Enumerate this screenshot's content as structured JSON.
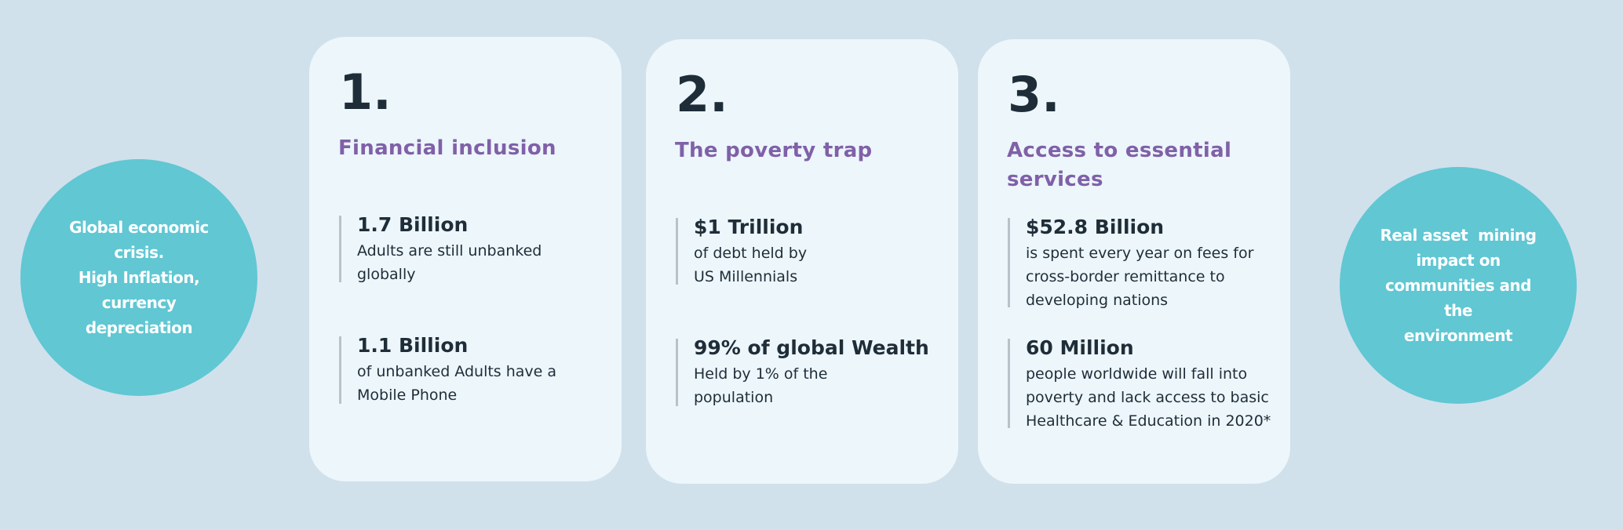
{
  "left_circle": {
    "text": "Global economic crisis.\nHigh Inflation, currency depreciation",
    "lines": [
      "Global economic",
      "crisis.",
      "High Inflation,",
      "currency",
      "depreciation"
    ]
  },
  "right_circle": {
    "lines": [
      "Real asset  mining",
      "impact on",
      "communities and the",
      "environment"
    ]
  },
  "cards": [
    {
      "number": "1.",
      "title": "Financial inclusion",
      "stats": [
        {
          "heading": "1.7 Billion",
          "body": "Adults are still unbanked globally"
        },
        {
          "heading": "1.1 Billion",
          "body": "of unbanked Adults have a Mobile Phone"
        }
      ]
    },
    {
      "number": "2.",
      "title": "The poverty trap",
      "stats": [
        {
          "heading": "$1 Trillion",
          "body": "of debt held by US Millennials"
        },
        {
          "heading": "99% of global Wealth",
          "body": "Held by 1% of the population"
        }
      ]
    },
    {
      "number": "3.",
      "title": "Access to essential services",
      "stats": [
        {
          "heading": "$52.8 Billion",
          "body": "is spent every year on fees for cross-border remittance to developing nations"
        },
        {
          "heading": "60 Million",
          "body": "people worldwide will fall into poverty and lack access to basic Healthcare & Education in 2020*"
        }
      ]
    }
  ],
  "colors": {
    "background": "#d0e1ec",
    "card": "#ecf6fb",
    "circle": "#60c7d3",
    "title": "#8060a8",
    "text": "#1f2d38"
  }
}
